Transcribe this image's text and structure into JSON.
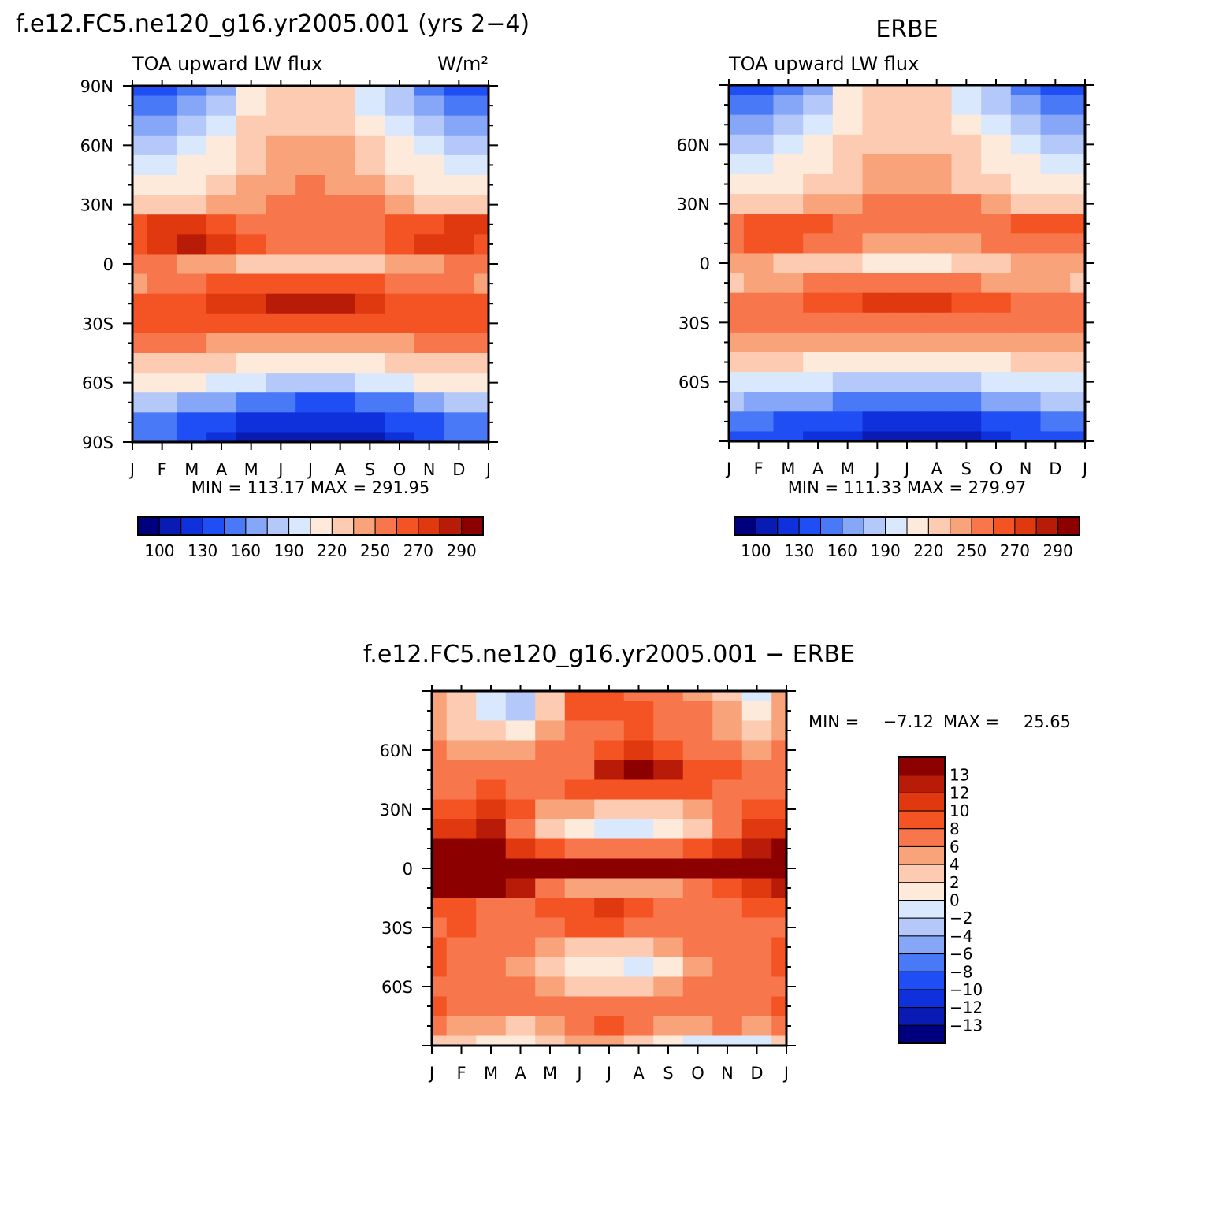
{
  "palette_main": [
    "#00007f",
    "#0a1bb4",
    "#0e31dc",
    "#1f4ef5",
    "#4a79f7",
    "#86a6f7",
    "#b4c8f9",
    "#d9e8fc",
    "#fdeadb",
    "#fccbb1",
    "#f9a37a",
    "#f7764c",
    "#f45424",
    "#e0380f",
    "#b81c08",
    "#8c0000"
  ],
  "palette_diff": [
    "#00007f",
    "#0a1bb4",
    "#0e31dc",
    "#1f4ef5",
    "#4a79f7",
    "#86a6f7",
    "#b4c8f9",
    "#d9e8fc",
    "#fdeadb",
    "#fccbb1",
    "#f9a37a",
    "#f7764c",
    "#f45424",
    "#e0380f",
    "#b81c08",
    "#8c0000"
  ],
  "chart_data": [
    {
      "type": "heatmap",
      "title": "f.e12.FC5.ne120_g16.yr2005.001 (yrs 2−4)",
      "left_label": "TOA upward LW flux",
      "right_label": "W/m²",
      "x_ticks": [
        "J",
        "F",
        "M",
        "A",
        "M",
        "J",
        "J",
        "A",
        "S",
        "O",
        "N",
        "D",
        "J"
      ],
      "y_ticks": [
        "90N",
        "60N",
        "30N",
        "0",
        "30S",
        "60S",
        "90S"
      ],
      "ylim": [
        -90,
        90
      ],
      "min_max": "MIN = 113.17 MAX = 291.95",
      "levels": [
        "100",
        "130",
        "160",
        "190",
        "220",
        "250",
        "270",
        "290"
      ],
      "bands": [
        {
          "lat": 90,
          "values": [
            3,
            3,
            4,
            5,
            8,
            9,
            9,
            9,
            7,
            6,
            4,
            3,
            3
          ]
        },
        {
          "lat": 80,
          "values": [
            4,
            4,
            5,
            6,
            8,
            9,
            9,
            9,
            7,
            6,
            5,
            4,
            4
          ]
        },
        {
          "lat": 70,
          "values": [
            5,
            5,
            6,
            7,
            9,
            9,
            9,
            9,
            8,
            7,
            6,
            5,
            5
          ]
        },
        {
          "lat": 60,
          "values": [
            6,
            6,
            7,
            8,
            9,
            10,
            10,
            10,
            9,
            8,
            7,
            6,
            6
          ]
        },
        {
          "lat": 50,
          "values": [
            7,
            7,
            8,
            8,
            9,
            10,
            10,
            10,
            9,
            8,
            8,
            7,
            7
          ]
        },
        {
          "lat": 40,
          "values": [
            8,
            8,
            8,
            9,
            10,
            10,
            11,
            10,
            10,
            9,
            8,
            8,
            8
          ]
        },
        {
          "lat": 30,
          "values": [
            9,
            9,
            9,
            10,
            10,
            11,
            11,
            11,
            11,
            10,
            9,
            9,
            9
          ]
        },
        {
          "lat": 20,
          "values": [
            12,
            13,
            13,
            12,
            11,
            11,
            11,
            11,
            11,
            12,
            12,
            13,
            13
          ]
        },
        {
          "lat": 10,
          "values": [
            12,
            13,
            14,
            13,
            12,
            11,
            11,
            11,
            11,
            12,
            13,
            13,
            12
          ]
        },
        {
          "lat": 0,
          "values": [
            11,
            11,
            10,
            10,
            9,
            9,
            9,
            9,
            9,
            10,
            10,
            11,
            11
          ]
        },
        {
          "lat": -10,
          "values": [
            10,
            11,
            11,
            12,
            12,
            12,
            12,
            12,
            12,
            11,
            11,
            11,
            10
          ]
        },
        {
          "lat": -20,
          "values": [
            12,
            12,
            12,
            13,
            13,
            14,
            14,
            14,
            13,
            12,
            12,
            12,
            12
          ]
        },
        {
          "lat": -30,
          "values": [
            12,
            12,
            12,
            12,
            12,
            12,
            12,
            12,
            12,
            12,
            12,
            12,
            12
          ]
        },
        {
          "lat": -40,
          "values": [
            11,
            11,
            11,
            10,
            10,
            10,
            10,
            10,
            10,
            10,
            11,
            11,
            11
          ]
        },
        {
          "lat": -50,
          "values": [
            9,
            9,
            9,
            9,
            8,
            8,
            8,
            8,
            8,
            9,
            9,
            9,
            9
          ]
        },
        {
          "lat": -60,
          "values": [
            8,
            8,
            8,
            7,
            7,
            6,
            6,
            6,
            7,
            7,
            8,
            8,
            8
          ]
        },
        {
          "lat": -70,
          "values": [
            6,
            6,
            5,
            5,
            4,
            4,
            3,
            3,
            4,
            4,
            5,
            6,
            6
          ]
        },
        {
          "lat": -80,
          "values": [
            4,
            4,
            3,
            3,
            2,
            2,
            2,
            2,
            2,
            3,
            3,
            4,
            4
          ]
        },
        {
          "lat": -90,
          "values": [
            4,
            4,
            3,
            2,
            1,
            1,
            1,
            1,
            1,
            2,
            3,
            4,
            4
          ]
        }
      ]
    },
    {
      "type": "heatmap",
      "title": "ERBE",
      "left_label": "TOA upward LW flux",
      "x_ticks": [
        "J",
        "F",
        "M",
        "A",
        "M",
        "J",
        "J",
        "A",
        "S",
        "O",
        "N",
        "D",
        "J"
      ],
      "y_ticks": [
        "60N",
        "30N",
        "0",
        "30S",
        "60S"
      ],
      "ylim": [
        -90,
        90
      ],
      "min_max": "MIN = 111.33 MAX = 279.97",
      "levels": [
        "100",
        "130",
        "160",
        "190",
        "220",
        "250",
        "270",
        "290"
      ],
      "bands": [
        {
          "lat": 90,
          "values": [
            3,
            3,
            4,
            5,
            8,
            9,
            9,
            9,
            7,
            6,
            4,
            3,
            3
          ]
        },
        {
          "lat": 80,
          "values": [
            4,
            4,
            5,
            6,
            8,
            9,
            9,
            9,
            7,
            6,
            5,
            4,
            4
          ]
        },
        {
          "lat": 70,
          "values": [
            5,
            5,
            6,
            7,
            8,
            9,
            9,
            9,
            8,
            7,
            6,
            5,
            5
          ]
        },
        {
          "lat": 60,
          "values": [
            6,
            6,
            7,
            8,
            9,
            9,
            9,
            9,
            9,
            8,
            7,
            6,
            6
          ]
        },
        {
          "lat": 50,
          "values": [
            7,
            7,
            8,
            8,
            9,
            10,
            10,
            10,
            9,
            8,
            8,
            7,
            7
          ]
        },
        {
          "lat": 40,
          "values": [
            8,
            8,
            8,
            9,
            9,
            10,
            10,
            10,
            9,
            9,
            8,
            8,
            8
          ]
        },
        {
          "lat": 30,
          "values": [
            9,
            9,
            9,
            10,
            10,
            11,
            11,
            11,
            11,
            10,
            9,
            9,
            9
          ]
        },
        {
          "lat": 20,
          "values": [
            11,
            12,
            12,
            12,
            11,
            11,
            11,
            11,
            11,
            11,
            12,
            12,
            12
          ]
        },
        {
          "lat": 10,
          "values": [
            11,
            12,
            12,
            11,
            11,
            10,
            10,
            10,
            10,
            11,
            11,
            11,
            11
          ]
        },
        {
          "lat": 0,
          "values": [
            10,
            10,
            9,
            9,
            9,
            8,
            8,
            8,
            9,
            9,
            10,
            10,
            10
          ]
        },
        {
          "lat": -10,
          "values": [
            9,
            10,
            10,
            11,
            11,
            11,
            11,
            11,
            11,
            10,
            10,
            10,
            9
          ]
        },
        {
          "lat": -20,
          "values": [
            11,
            11,
            11,
            12,
            12,
            13,
            13,
            13,
            12,
            12,
            11,
            11,
            11
          ]
        },
        {
          "lat": -30,
          "values": [
            11,
            11,
            11,
            11,
            11,
            11,
            11,
            11,
            11,
            11,
            11,
            11,
            11
          ]
        },
        {
          "lat": -40,
          "values": [
            10,
            10,
            10,
            10,
            10,
            10,
            10,
            10,
            10,
            10,
            10,
            10,
            10
          ]
        },
        {
          "lat": -50,
          "values": [
            9,
            9,
            9,
            8,
            8,
            8,
            8,
            8,
            8,
            8,
            9,
            9,
            9
          ]
        },
        {
          "lat": -60,
          "values": [
            7,
            7,
            7,
            7,
            6,
            6,
            6,
            6,
            6,
            7,
            7,
            7,
            7
          ]
        },
        {
          "lat": -70,
          "values": [
            6,
            5,
            5,
            5,
            4,
            4,
            4,
            4,
            4,
            5,
            5,
            6,
            6
          ]
        },
        {
          "lat": -80,
          "values": [
            4,
            4,
            3,
            3,
            3,
            2,
            2,
            2,
            2,
            3,
            3,
            4,
            4
          ]
        },
        {
          "lat": -90,
          "values": [
            3,
            3,
            3,
            2,
            2,
            1,
            1,
            1,
            1,
            2,
            3,
            3,
            3
          ]
        }
      ]
    },
    {
      "type": "heatmap",
      "title": "f.e12.FC5.ne120_g16.yr2005.001 − ERBE",
      "x_ticks": [
        "J",
        "F",
        "M",
        "A",
        "M",
        "J",
        "J",
        "A",
        "S",
        "O",
        "N",
        "D",
        "J"
      ],
      "y_ticks": [
        "60N",
        "30N",
        "0",
        "30S",
        "60S"
      ],
      "ylim": [
        -90,
        90
      ],
      "min_label": "MIN =",
      "min_value": "−7.12",
      "max_label": "MAX =",
      "max_value": "25.65",
      "levels": [
        "13",
        "12",
        "10",
        "8",
        "6",
        "4",
        "2",
        "0",
        "−2",
        "−4",
        "−6",
        "−8",
        "−10",
        "−12",
        "−13"
      ],
      "bands": [
        {
          "lat": 90,
          "values": [
            10,
            9,
            7,
            6,
            9,
            12,
            12,
            11,
            11,
            10,
            9,
            7,
            10
          ]
        },
        {
          "lat": 80,
          "values": [
            10,
            9,
            7,
            6,
            9,
            12,
            12,
            12,
            11,
            11,
            10,
            8,
            10
          ]
        },
        {
          "lat": 70,
          "values": [
            10,
            9,
            9,
            8,
            10,
            11,
            11,
            12,
            11,
            11,
            10,
            9,
            10
          ]
        },
        {
          "lat": 60,
          "values": [
            11,
            10,
            10,
            10,
            11,
            11,
            12,
            13,
            12,
            11,
            11,
            10,
            11
          ]
        },
        {
          "lat": 50,
          "values": [
            11,
            11,
            11,
            11,
            11,
            11,
            14,
            15,
            14,
            12,
            12,
            11,
            11
          ]
        },
        {
          "lat": 40,
          "values": [
            11,
            11,
            12,
            11,
            11,
            12,
            12,
            12,
            12,
            12,
            11,
            11,
            11
          ]
        },
        {
          "lat": 30,
          "values": [
            12,
            12,
            13,
            12,
            10,
            10,
            9,
            9,
            9,
            10,
            11,
            12,
            12
          ]
        },
        {
          "lat": 20,
          "values": [
            13,
            13,
            14,
            11,
            9,
            8,
            7,
            7,
            8,
            9,
            11,
            13,
            13
          ]
        },
        {
          "lat": 10,
          "values": [
            15,
            15,
            15,
            13,
            12,
            11,
            11,
            11,
            11,
            12,
            13,
            14,
            15
          ]
        },
        {
          "lat": 0,
          "values": [
            15,
            15,
            15,
            15,
            15,
            15,
            15,
            15,
            15,
            15,
            15,
            15,
            15
          ]
        },
        {
          "lat": -10,
          "values": [
            15,
            15,
            15,
            14,
            11,
            10,
            10,
            10,
            10,
            11,
            12,
            13,
            14
          ]
        },
        {
          "lat": -20,
          "values": [
            12,
            12,
            11,
            11,
            12,
            12,
            13,
            12,
            11,
            11,
            11,
            12,
            12
          ]
        },
        {
          "lat": -30,
          "values": [
            11,
            12,
            11,
            11,
            11,
            12,
            12,
            11,
            11,
            11,
            11,
            11,
            11
          ]
        },
        {
          "lat": -40,
          "values": [
            12,
            11,
            11,
            11,
            10,
            9,
            9,
            9,
            10,
            11,
            11,
            11,
            12
          ]
        },
        {
          "lat": -50,
          "values": [
            12,
            11,
            11,
            10,
            9,
            8,
            8,
            7,
            8,
            10,
            11,
            11,
            12
          ]
        },
        {
          "lat": -60,
          "values": [
            11,
            11,
            11,
            11,
            10,
            9,
            9,
            9,
            10,
            11,
            11,
            11,
            11
          ]
        },
        {
          "lat": -70,
          "values": [
            12,
            11,
            11,
            11,
            11,
            11,
            11,
            11,
            11,
            11,
            11,
            11,
            12
          ]
        },
        {
          "lat": -80,
          "values": [
            11,
            10,
            10,
            9,
            10,
            11,
            12,
            11,
            10,
            10,
            11,
            10,
            11
          ]
        },
        {
          "lat": -90,
          "values": [
            9,
            9,
            8,
            8,
            9,
            10,
            10,
            9,
            8,
            7,
            7,
            7,
            9
          ]
        }
      ]
    }
  ]
}
